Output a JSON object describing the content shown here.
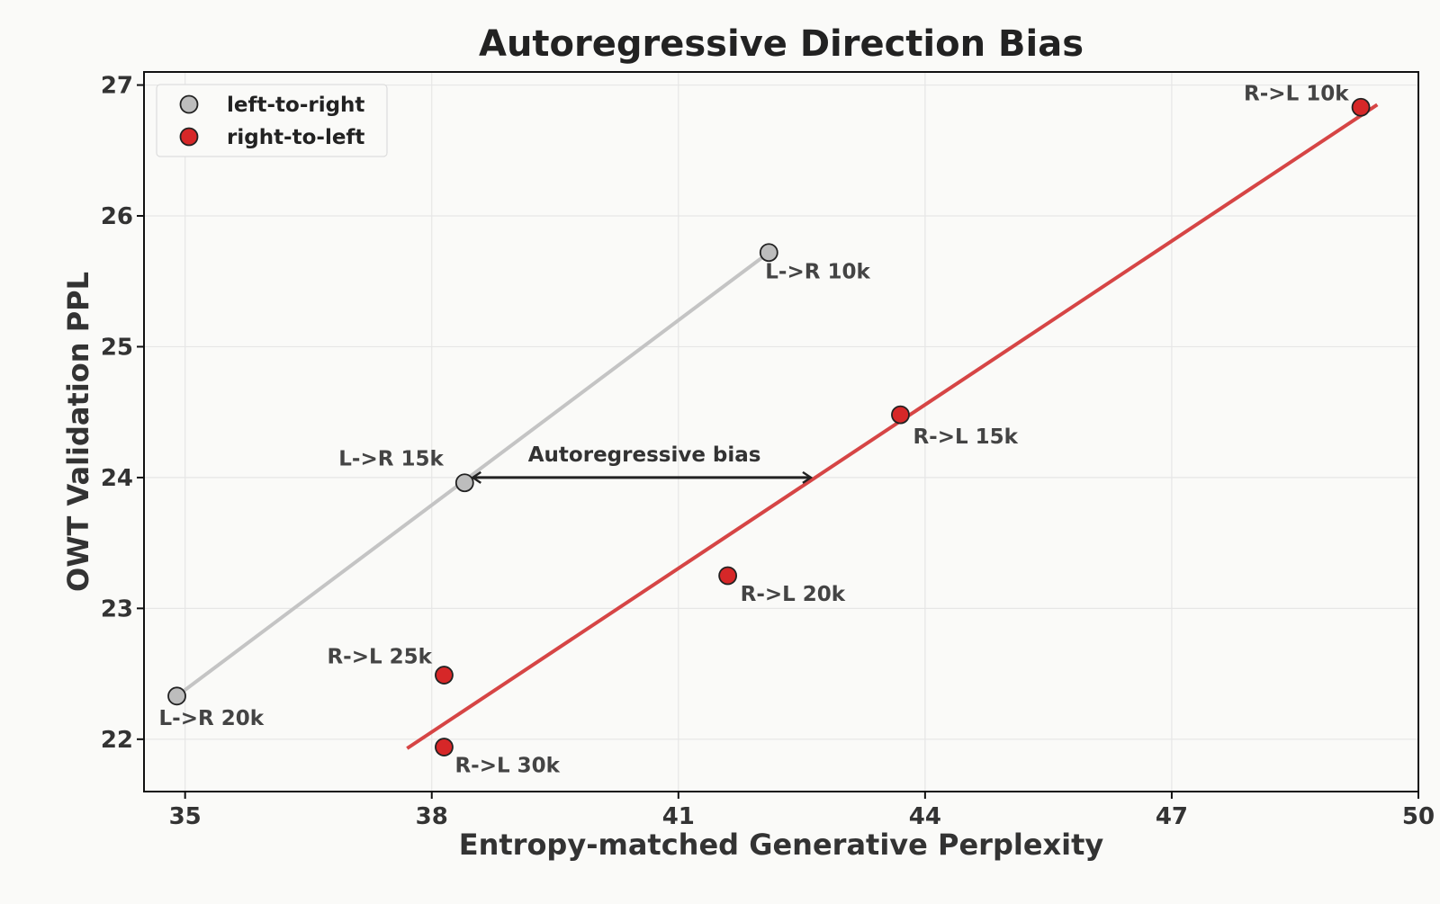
{
  "chart_data": {
    "type": "scatter",
    "title": "Autoregressive Direction Bias",
    "xlabel": "Entropy-matched Generative Perplexity",
    "ylabel": "OWT Validation PPL",
    "xlim": [
      34.5,
      50
    ],
    "ylim": [
      21.6,
      27.1
    ],
    "xticks": [
      35,
      38,
      41,
      44,
      47,
      50
    ],
    "yticks": [
      22,
      23,
      24,
      25,
      26,
      27
    ],
    "grid": true,
    "legend_position": "top-left",
    "series": [
      {
        "name": "left-to-right",
        "color": "#bdbdbd",
        "line_color": "#c4c4c4",
        "points": [
          {
            "x": 42.1,
            "y": 25.72,
            "label": "L->R 10k"
          },
          {
            "x": 38.4,
            "y": 23.96,
            "label": "L->R 15k"
          },
          {
            "x": 34.9,
            "y": 22.33,
            "label": "L->R 20k"
          }
        ],
        "trend_line": [
          [
            34.9,
            22.33
          ],
          [
            42.1,
            25.72
          ]
        ]
      },
      {
        "name": "right-to-left",
        "color": "#d62728",
        "line_color": "#d64545",
        "points": [
          {
            "x": 49.3,
            "y": 26.83,
            "label": "R->L 10k"
          },
          {
            "x": 43.7,
            "y": 24.48,
            "label": "R->L 15k"
          },
          {
            "x": 41.6,
            "y": 23.25,
            "label": "R->L 20k"
          },
          {
            "x": 38.15,
            "y": 22.49,
            "label": "R->L 25k"
          },
          {
            "x": 38.15,
            "y": 21.94,
            "label": "R->L 30k"
          }
        ],
        "trend_line": [
          [
            37.7,
            21.93
          ],
          [
            49.5,
            26.85
          ]
        ]
      }
    ],
    "annotations": [
      {
        "text": "Autoregressive bias",
        "arrow_from": [
          38.4,
          24.0
        ],
        "arrow_to": [
          42.6,
          24.0
        ]
      }
    ]
  }
}
